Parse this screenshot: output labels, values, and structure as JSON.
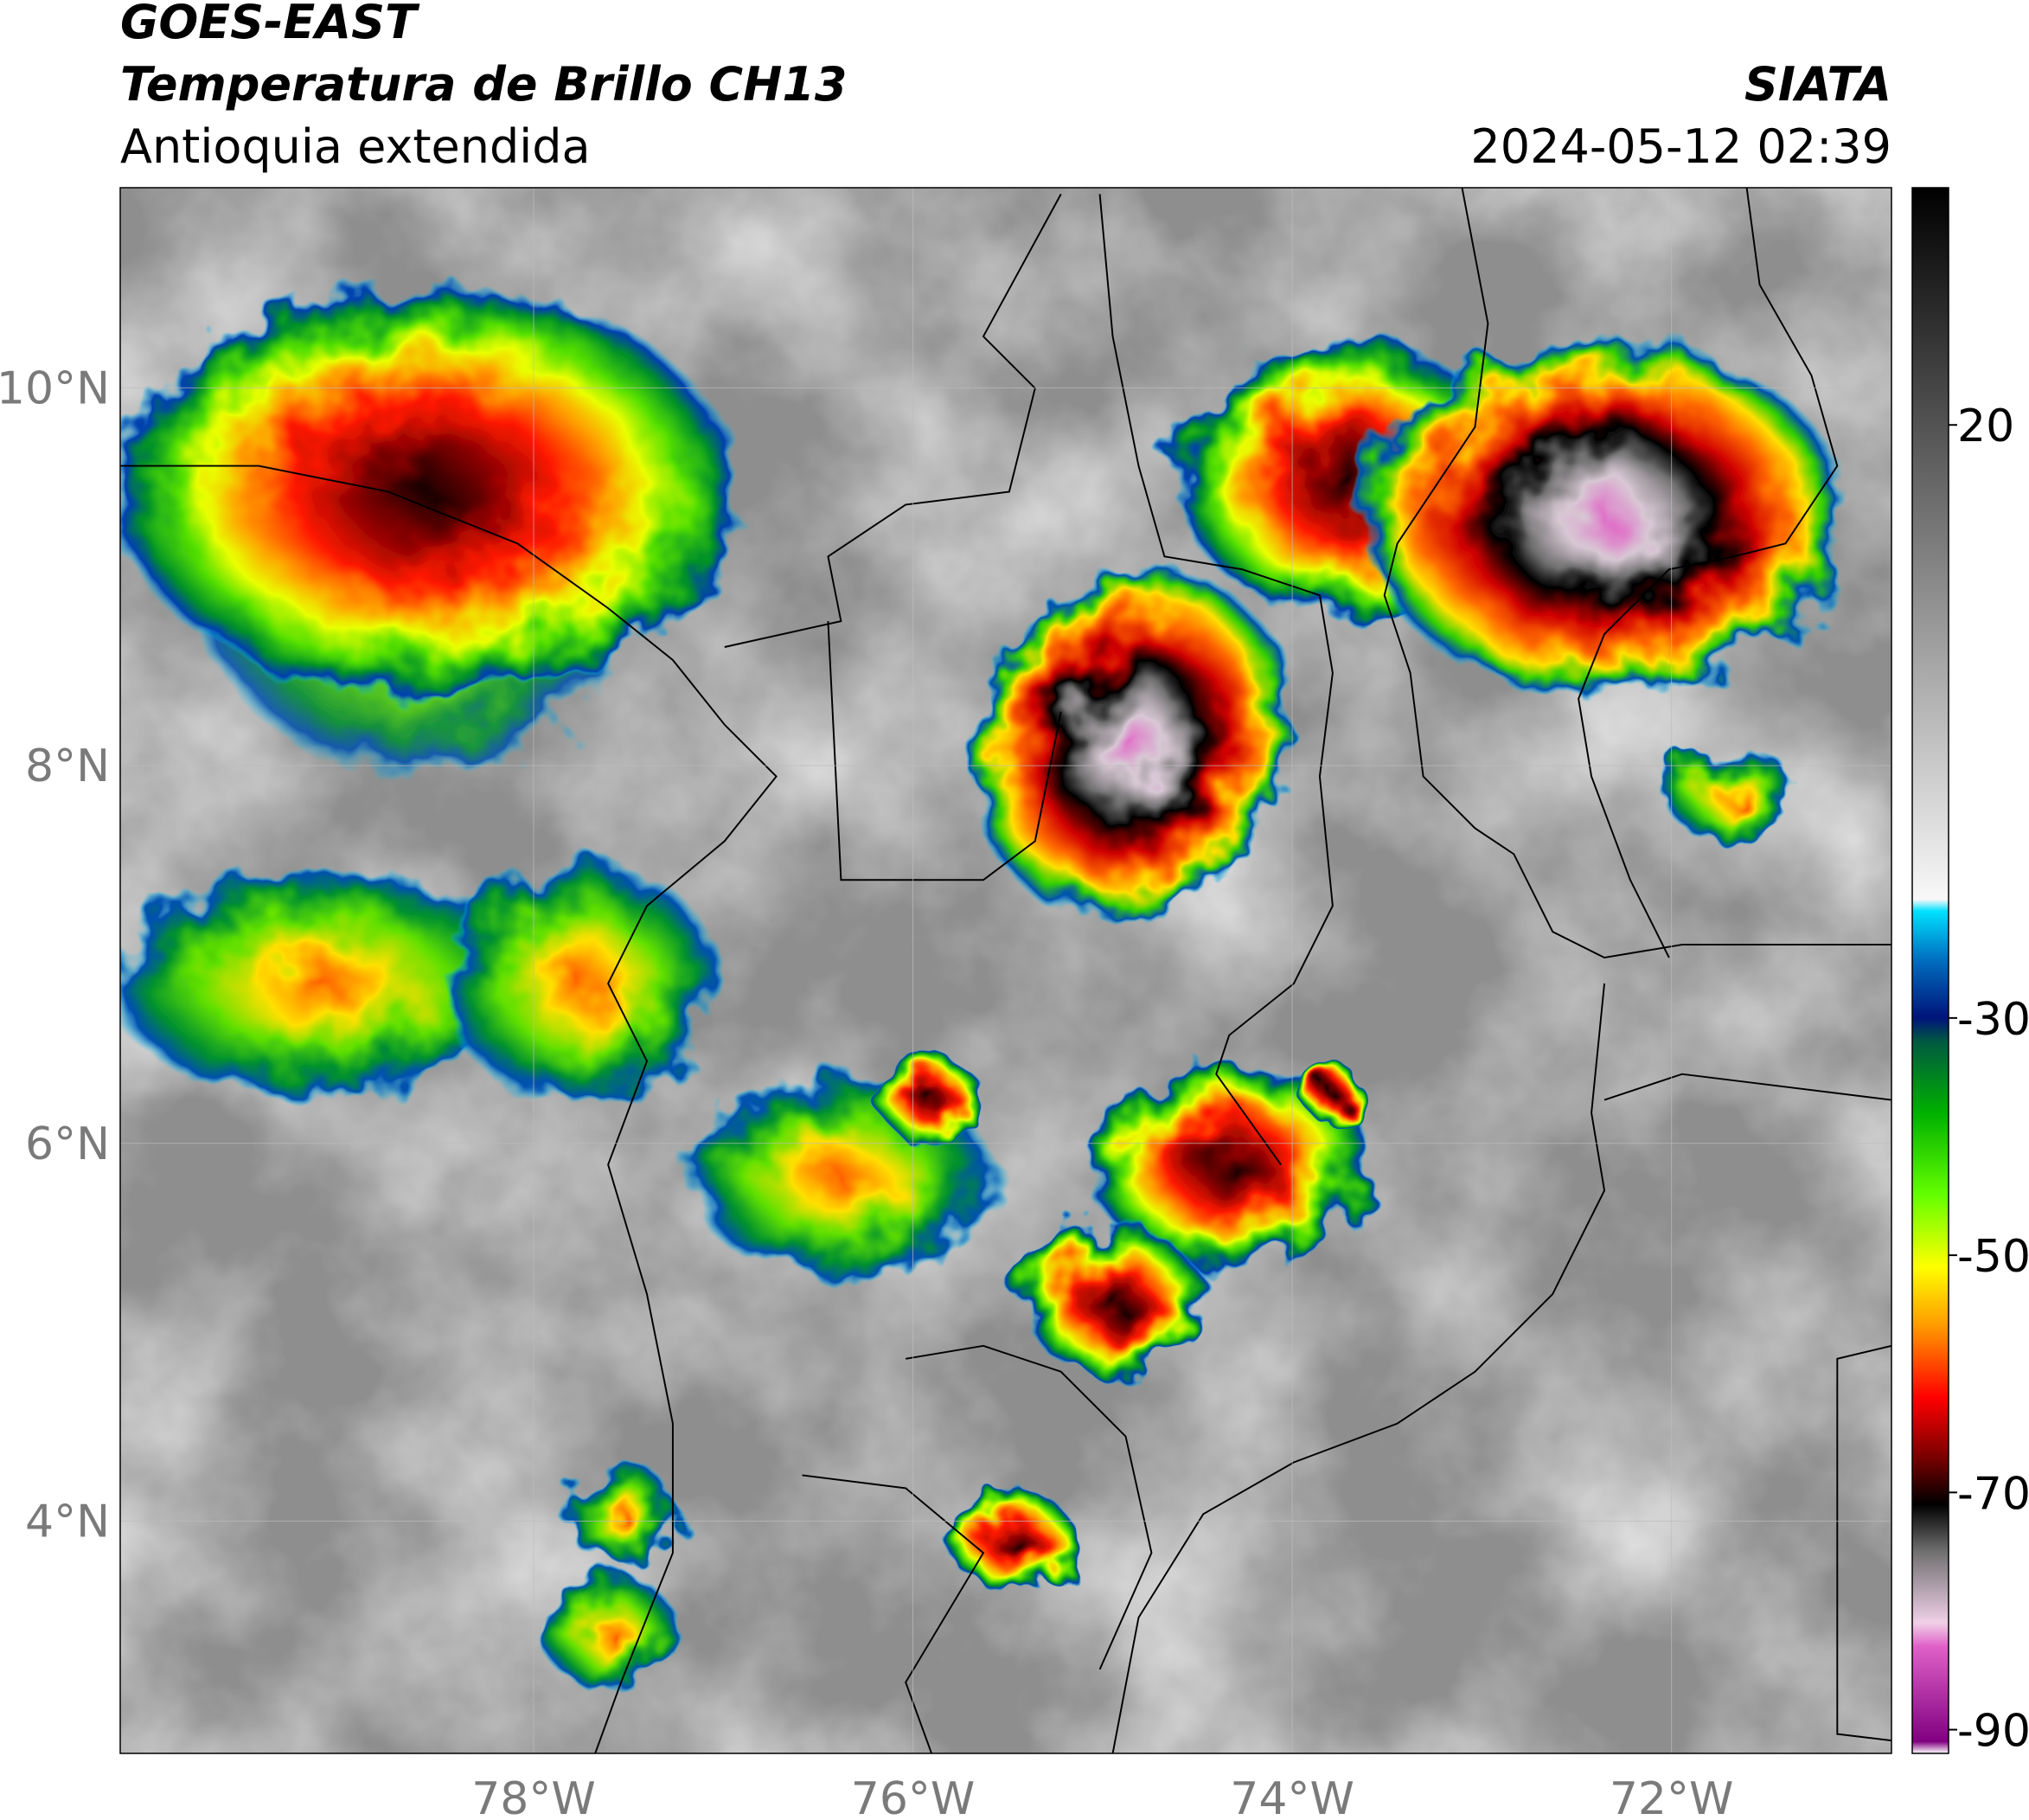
{
  "header": {
    "title": "GOES-EAST",
    "subtitle": "Temperatura de Brillo CH13",
    "region": "Antioquia extendida",
    "source": "SIATA",
    "timestamp": "2024-05-12 02:39"
  },
  "chart_data": {
    "type": "map",
    "xlim": [
      -80.18,
      -70.84
    ],
    "ylim": [
      2.77,
      11.06
    ],
    "xticks": [
      {
        "value": -78,
        "label": "78°W"
      },
      {
        "value": -76,
        "label": "76°W"
      },
      {
        "value": -74,
        "label": "74°W"
      },
      {
        "value": -72,
        "label": "72°W"
      }
    ],
    "yticks": [
      {
        "value": 4,
        "label": "4°N"
      },
      {
        "value": 6,
        "label": "6°N"
      },
      {
        "value": 8,
        "label": "8°N"
      },
      {
        "value": 10,
        "label": "10°N"
      }
    ],
    "grid": true,
    "colorbar": {
      "lim": [
        -92,
        40
      ],
      "ticks": [
        -90,
        -70,
        -50,
        -30,
        20
      ],
      "stops": [
        {
          "value": -92,
          "color": "#ffffff"
        },
        {
          "value": -91,
          "color": "#800080"
        },
        {
          "value": -83,
          "color": "#e060c8"
        },
        {
          "value": -81,
          "color": "#f0d0e8"
        },
        {
          "value": -75,
          "color": "#707070"
        },
        {
          "value": -71,
          "color": "#000000"
        },
        {
          "value": -67,
          "color": "#7a0000"
        },
        {
          "value": -62,
          "color": "#ff0000"
        },
        {
          "value": -56,
          "color": "#ff9900"
        },
        {
          "value": -51,
          "color": "#ffff00"
        },
        {
          "value": -45,
          "color": "#66ff00"
        },
        {
          "value": -38,
          "color": "#00b000"
        },
        {
          "value": -32,
          "color": "#005a40"
        },
        {
          "value": -30,
          "color": "#00147a"
        },
        {
          "value": -25,
          "color": "#0070c0"
        },
        {
          "value": -21,
          "color": "#00e0ff"
        },
        {
          "value": -20,
          "color": "#f8f8f8"
        },
        {
          "value": 40,
          "color": "#000000"
        }
      ]
    }
  }
}
